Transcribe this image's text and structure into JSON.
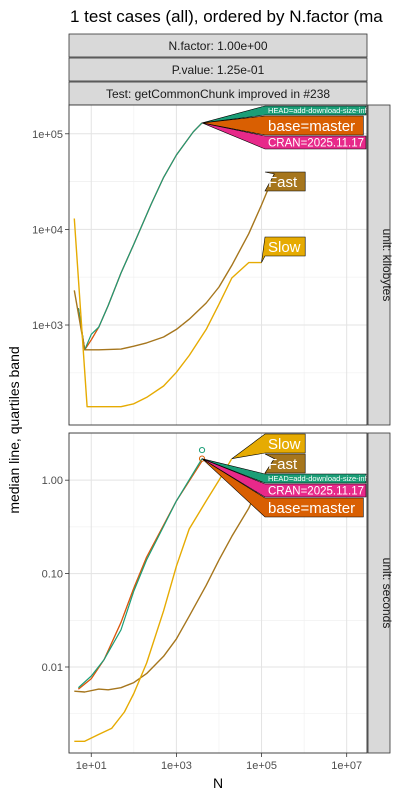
{
  "chart_data": {
    "type": "line",
    "title": "1 test cases (all), ordered by N.factor (ma",
    "xlabel": "N",
    "ylabel": "median line, quartiles band",
    "strips_top": [
      "N.factor: 1.00e+00",
      "P.value: 1.25e-01",
      "Test: getCommonChunk improved in #238"
    ],
    "x_scale": "log10",
    "xlim": [
      3,
      30000000
    ],
    "x_ticks": [
      10,
      1000,
      100000,
      10000000
    ],
    "x_tick_labels": [
      "1e+01",
      "1e+03",
      "1e+05",
      "1e+07"
    ],
    "grid": true,
    "panels": [
      {
        "name": "kilobytes",
        "strip_right": "unit: kilobytes",
        "y_scale": "log10",
        "ylim": [
          90,
          200000
        ],
        "y_ticks": [
          1000,
          10000,
          100000
        ],
        "y_tick_labels": [
          "1e+03",
          "1e+04",
          "1e+05"
        ],
        "series": [
          {
            "name": "CRAN=2025.11.17",
            "color": "#E7298A",
            "width": 1.2,
            "x": [
              5,
              7,
              10,
              15,
              25,
              50,
              100,
              250,
              500,
              1000,
              2500,
              4000
            ],
            "y": [
              1500,
              550,
              700,
              950,
              1600,
              3500,
              7000,
              18000,
              35000,
              60000,
              105000,
              130000
            ]
          },
          {
            "name": "base=master",
            "color": "#D95F02",
            "width": 1.2,
            "x": [
              5,
              7,
              10,
              15,
              25,
              50,
              100,
              250,
              500,
              1000,
              2500,
              4000
            ],
            "y": [
              1500,
              550,
              700,
              950,
              1600,
              3500,
              7000,
              18000,
              35000,
              60000,
              105000,
              130000
            ]
          },
          {
            "name": "HEAD=add-download-size-info",
            "color": "#1B9E77",
            "width": 1.2,
            "x": [
              5,
              7,
              10,
              15,
              25,
              50,
              100,
              250,
              500,
              1000,
              2500,
              4000
            ],
            "y": [
              1500,
              550,
              800,
              950,
              1600,
              3500,
              7000,
              18000,
              35000,
              60000,
              105000,
              130000
            ]
          },
          {
            "name": "Fast",
            "color": "#A6761D",
            "width": 1.4,
            "x": [
              4,
              7,
              15,
              50,
              100,
              200,
              500,
              1000,
              2000,
              5000,
              10000,
              20000,
              50000,
              100000,
              200000
            ],
            "y": [
              2300,
              550,
              550,
              560,
              600,
              650,
              750,
              900,
              1150,
              1700,
              2500,
              4200,
              9000,
              18000,
              38000
            ]
          },
          {
            "name": "Slow",
            "color": "#E6AB02",
            "width": 1.4,
            "x": [
              4,
              8,
              15,
              50,
              100,
              200,
              500,
              1000,
              2000,
              5000,
              10000,
              20000,
              50000,
              100000
            ],
            "y": [
              13000,
              140,
              140,
              140,
              150,
              175,
              230,
              320,
              480,
              900,
              1650,
              3100,
              4500,
              4500
            ]
          }
        ],
        "labels": [
          {
            "text": "HEAD=add-download-size-info",
            "size": "small",
            "color": "#1B9E77",
            "x": 4000,
            "y": 130000
          },
          {
            "text": "base=master",
            "size": "big",
            "color": "#D95F02",
            "x": 4000,
            "y": 130000
          },
          {
            "text": "CRAN=2025.11.17",
            "size": "mid",
            "color": "#E7298A",
            "x": 4000,
            "y": 130000
          },
          {
            "text": "Fast",
            "size": "big",
            "color": "#A6761D",
            "x": 200000,
            "y": 38000
          },
          {
            "text": "Slow",
            "size": "big",
            "color": "#E6AB02",
            "x": 100000,
            "y": 4500
          }
        ]
      },
      {
        "name": "seconds",
        "strip_right": "unit: seconds",
        "y_scale": "log10",
        "ylim": [
          0.0012,
          3.2
        ],
        "y_ticks": [
          0.01,
          0.1,
          1
        ],
        "y_tick_labels": [
          "0.01",
          "0.10",
          "1.00"
        ],
        "points": [
          {
            "x": 4000,
            "y": 2.1,
            "color": "#1B9E77"
          },
          {
            "x": 4000,
            "y": 1.7,
            "color": "#D95F02"
          }
        ],
        "series": [
          {
            "name": "CRAN=2025.11.17",
            "color": "#E7298A",
            "width": 1.2,
            "x": [
              5,
              10,
              20,
              50,
              100,
              200,
              500,
              1000,
              4000
            ],
            "y": [
              0.0058,
              0.0075,
              0.012,
              0.03,
              0.07,
              0.15,
              0.33,
              0.6,
              1.6
            ]
          },
          {
            "name": "base=master",
            "color": "#D95F02",
            "width": 1.2,
            "x": [
              5,
              10,
              20,
              50,
              100,
              200,
              500,
              1000,
              4000
            ],
            "y": [
              0.0058,
              0.0075,
              0.012,
              0.03,
              0.07,
              0.15,
              0.33,
              0.6,
              1.6
            ]
          },
          {
            "name": "HEAD=add-download-size-info",
            "color": "#1B9E77",
            "width": 1.2,
            "x": [
              5,
              10,
              20,
              50,
              100,
              200,
              500,
              1000,
              4000
            ],
            "y": [
              0.006,
              0.008,
              0.012,
              0.025,
              0.065,
              0.14,
              0.32,
              0.6,
              1.7
            ]
          },
          {
            "name": "Fast",
            "color": "#A6761D",
            "width": 1.4,
            "x": [
              4,
              7,
              15,
              25,
              50,
              100,
              200,
              500,
              1000,
              2000,
              5000,
              10000,
              20000,
              50000,
              100000,
              200000
            ],
            "y": [
              0.0055,
              0.0054,
              0.0058,
              0.0057,
              0.006,
              0.0068,
              0.0085,
              0.013,
              0.02,
              0.035,
              0.075,
              0.14,
              0.25,
              0.5,
              1.0,
              1.7
            ]
          },
          {
            "name": "Slow",
            "color": "#E6AB02",
            "width": 1.4,
            "x": [
              4,
              7,
              15,
              30,
              60,
              100,
              200,
              500,
              1000,
              2000,
              5000,
              10000,
              20000
            ],
            "y": [
              0.0016,
              0.0016,
              0.0019,
              0.0022,
              0.0033,
              0.0052,
              0.011,
              0.04,
              0.12,
              0.3,
              0.6,
              1.0,
              1.7
            ]
          }
        ],
        "labels": [
          {
            "text": "Slow",
            "size": "big",
            "color": "#E6AB02",
            "x": 20000,
            "y": 1.7
          },
          {
            "text": "Fast",
            "size": "big",
            "color": "#A6761D",
            "x": 200000,
            "y": 1.7
          },
          {
            "text": "HEAD=add-download-size-info",
            "size": "small",
            "color": "#1B9E77",
            "x": 4000,
            "y": 1.7
          },
          {
            "text": "CRAN=2025.11.17",
            "size": "mid",
            "color": "#E7298A",
            "x": 4000,
            "y": 1.7
          },
          {
            "text": "base=master",
            "size": "big",
            "color": "#D95F02",
            "x": 4000,
            "y": 1.7
          }
        ]
      }
    ]
  }
}
